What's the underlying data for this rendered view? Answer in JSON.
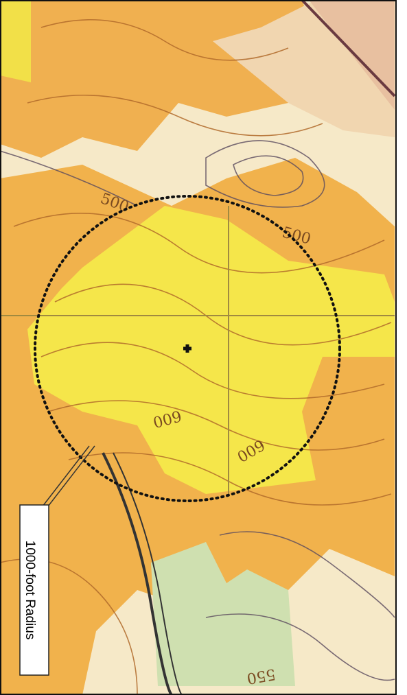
{
  "callout": {
    "label": "1000-foot Radius"
  },
  "contour_labels": [
    "500",
    "500",
    "600",
    "600",
    "550"
  ]
}
